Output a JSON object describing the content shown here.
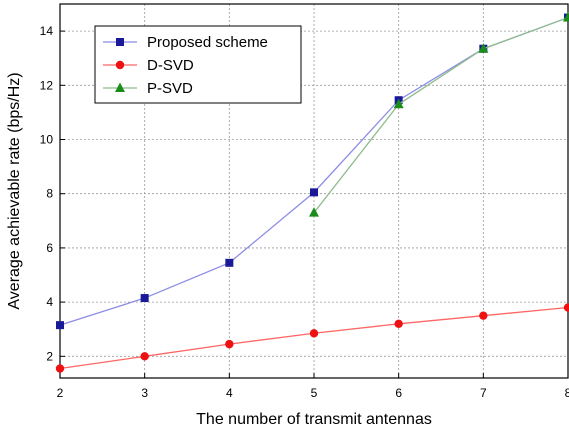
{
  "chart_data": {
    "type": "line",
    "title": "",
    "xlabel": "The number of transmit antennas",
    "ylabel": "Average achievable rate (bps/Hz)",
    "xlim": [
      2,
      8
    ],
    "ylim": [
      1.2,
      15
    ],
    "x_ticks": [
      2,
      3,
      4,
      5,
      6,
      7,
      8
    ],
    "y_ticks": [
      2,
      4,
      6,
      8,
      10,
      12,
      14
    ],
    "grid": true,
    "legend_position": "top-left",
    "series": [
      {
        "name": "Proposed scheme",
        "color": "#8c8ce6",
        "marker_color": "#1a1a99",
        "marker": "square",
        "x": [
          2,
          3,
          4,
          5,
          6,
          7,
          8
        ],
        "y": [
          3.15,
          4.15,
          5.45,
          8.05,
          11.45,
          13.35,
          14.5
        ]
      },
      {
        "name": "D-SVD",
        "color": "#ff6666",
        "marker_color": "#ee1111",
        "marker": "circle",
        "x": [
          2,
          3,
          4,
          5,
          6,
          7,
          8
        ],
        "y": [
          1.55,
          2.0,
          2.45,
          2.85,
          3.2,
          3.5,
          3.8
        ]
      },
      {
        "name": "P-SVD",
        "color": "#8fbc8f",
        "marker_color": "#1a8c1a",
        "marker": "triangle",
        "x": [
          5,
          6,
          7,
          8
        ],
        "y": [
          7.3,
          11.3,
          13.35,
          14.5
        ]
      }
    ]
  }
}
